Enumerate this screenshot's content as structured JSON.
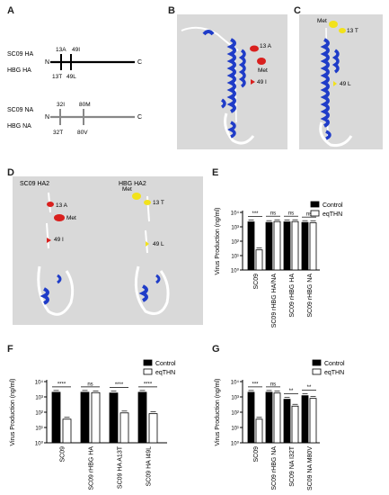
{
  "panels": {
    "a": "A",
    "b": "B",
    "c": "C",
    "d": "D",
    "e": "E",
    "f": "F",
    "g": "G"
  },
  "panel_a": {
    "ha_top_label": "SC09 HA",
    "ha_bottom_label": "HBG  HA",
    "ha_top_sites": [
      "13A",
      "49I"
    ],
    "ha_bottom_sites": [
      "13T",
      "49L"
    ],
    "na_top_label": "SC09 NA",
    "na_bottom_label": "HBG  NA",
    "na_top_sites": [
      "32I",
      "80M"
    ],
    "na_bottom_sites": [
      "32T",
      "80V"
    ],
    "n_label": "N",
    "c_label": "C"
  },
  "panel_b": {
    "labels": [
      "13 A",
      "Met",
      "49 I"
    ],
    "colors": {
      "helix": "#1f3cc8",
      "mark": "#d9201e"
    }
  },
  "panel_c": {
    "labels": [
      "Met",
      "13 T",
      "49 L"
    ],
    "colors": {
      "mark": "#f2e21b"
    }
  },
  "panel_d": {
    "left_title": "SC09 HA2",
    "right_title": "HBG HA2",
    "left_labels": [
      "13 A",
      "Met",
      "49 I"
    ],
    "right_labels": [
      "Met",
      "13 T",
      "49 L"
    ]
  },
  "chart_data": [
    {
      "panel": "E",
      "type": "bar",
      "ylabel": "Virus Production (ng/ml)",
      "yscale": "log",
      "ylim": [
        1,
        10000
      ],
      "yticks": [
        "10⁰",
        "10¹",
        "10²",
        "10³",
        "10⁴"
      ],
      "categories": [
        "SC09",
        "SC09 rHBG HA/NA",
        "SC09 rHBG HA",
        "SC09 rHBG NA"
      ],
      "series": [
        {
          "name": "Control",
          "values": [
            2200,
            2000,
            2200,
            2000
          ],
          "color": "#000000"
        },
        {
          "name": "eqTHN",
          "values": [
            25,
            2300,
            2300,
            1900
          ],
          "color": "#ffffff"
        }
      ],
      "significance": [
        "***",
        "ns",
        "ns",
        "ns"
      ]
    },
    {
      "panel": "F",
      "type": "bar",
      "ylabel": "Virus Production (ng/ml)",
      "yscale": "log",
      "ylim": [
        1,
        10000
      ],
      "yticks": [
        "10⁰",
        "10¹",
        "10²",
        "10³",
        "10⁴"
      ],
      "categories": [
        "SC09",
        "SC09 rHBG HA",
        "SC09 HA A13T",
        "SC09 HA I49L"
      ],
      "series": [
        {
          "name": "Control",
          "values": [
            2000,
            2000,
            1800,
            2000
          ],
          "color": "#000000"
        },
        {
          "name": "eqTHN",
          "values": [
            35,
            1900,
            90,
            80
          ],
          "color": "#ffffff"
        }
      ],
      "significance": [
        "****",
        "ns",
        "****",
        "****"
      ]
    },
    {
      "panel": "G",
      "type": "bar",
      "ylabel": "Virus Production (ng/ml)",
      "yscale": "log",
      "ylim": [
        1,
        10000
      ],
      "yticks": [
        "10⁰",
        "10¹",
        "10²",
        "10³",
        "10⁴"
      ],
      "categories": [
        "SC09",
        "SC09 rHBG NA",
        "SC09 NA I32T",
        "SC09 NA M80V"
      ],
      "series": [
        {
          "name": "Control",
          "values": [
            2000,
            2000,
            700,
            1200
          ],
          "color": "#000000"
        },
        {
          "name": "eqTHN",
          "values": [
            35,
            1800,
            250,
            800
          ],
          "color": "#ffffff"
        }
      ],
      "significance": [
        "***",
        "ns",
        "**",
        "**"
      ]
    }
  ],
  "legend": {
    "control": "Control",
    "treated": "eqTHN"
  }
}
